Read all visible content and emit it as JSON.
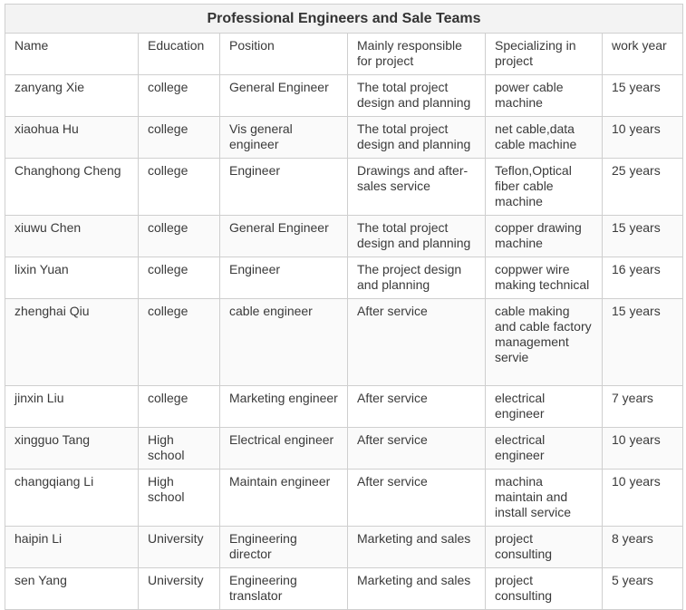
{
  "table": {
    "title": "Professional Engineers and Sale Teams",
    "headers": [
      "Name",
      "Education",
      "Position",
      "Mainly responsible for project",
      "Specializing in project",
      "work year"
    ],
    "rows": [
      [
        "zanyang Xie",
        "college",
        "General Engineer",
        "The total project design and planning",
        "power cable machine",
        "15 years"
      ],
      [
        "xiaohua Hu",
        "college",
        "Vis general engineer",
        "The total project design and planning",
        "net cable,data cable machine",
        "10 years"
      ],
      [
        "Changhong Cheng",
        "college",
        "Engineer",
        "Drawings and after-sales service",
        "Teflon,Optical fiber cable machine",
        "25 years"
      ],
      [
        "xiuwu Chen",
        "college",
        "General Engineer",
        "The total project design and planning",
        "copper drawing machine",
        "15 years"
      ],
      [
        "lixin Yuan",
        "college",
        "Engineer",
        "The project design and planning",
        "coppwer wire making technical",
        "16 years"
      ],
      [
        "zhenghai Qiu",
        "college",
        "cable engineer",
        "After service",
        "cable making and cable factory management servie",
        "15 years"
      ],
      [
        "jinxin Liu",
        "college",
        "Marketing engineer",
        "After service",
        "electrical engineer",
        "7 years"
      ],
      [
        "xingguo Tang",
        "High school",
        "Electrical engineer",
        "After service",
        "electrical engineer",
        "10 years"
      ],
      [
        "changqiang Li",
        "High school",
        "Maintain engineer",
        "After service",
        "machina maintain and install service",
        "10 years"
      ],
      [
        "haipin Li",
        "University",
        "Engineering director",
        "Marketing and sales",
        "project consulting",
        "8 years"
      ],
      [
        "sen Yang",
        "University",
        "Engineering translator",
        "Marketing and sales",
        "project consulting",
        "5 years"
      ]
    ]
  }
}
